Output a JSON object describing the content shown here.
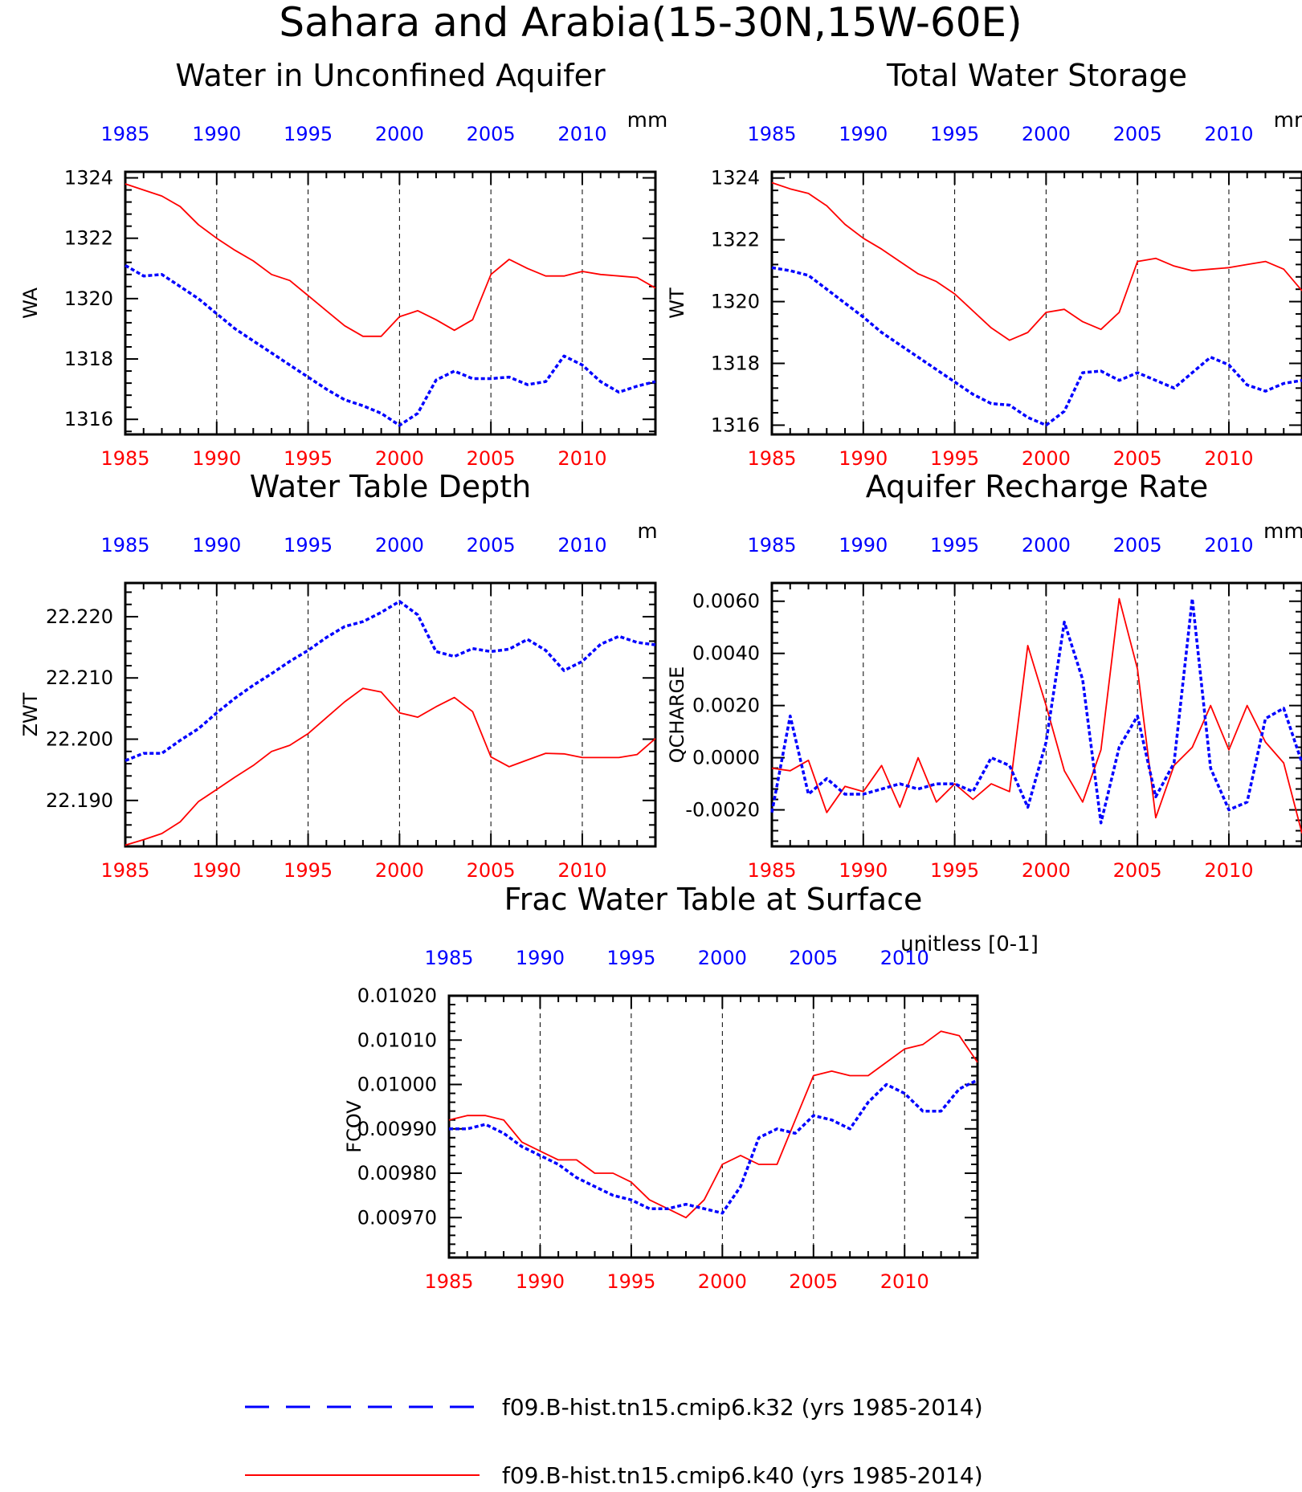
{
  "title": "Sahara and Arabia(15-30N,15W-60E)",
  "colors": {
    "k32": "#0000ff",
    "k40": "#ff0000",
    "axis": "#000000"
  },
  "legend": {
    "items": [
      {
        "label": "f09.B-hist.tn15.cmip6.k32 (yrs 1985-2014)",
        "color": "#0000ff",
        "style": "dashed"
      },
      {
        "label": "f09.B-hist.tn15.cmip6.k40 (yrs 1985-2014)",
        "color": "#ff0000",
        "style": "solid"
      }
    ]
  },
  "chart_data": [
    {
      "type": "line",
      "title": "Water in Unconfined Aquifer",
      "ylabel": "WA",
      "units": "mm",
      "xlim": [
        1985,
        2014
      ],
      "ylim": [
        1315.5,
        1324.2
      ],
      "yticks": [
        "1316",
        "1318",
        "1320",
        "1322",
        "1324"
      ],
      "ytick_values": [
        1316,
        1318,
        1320,
        1322,
        1324
      ],
      "xticks": [
        1985,
        1990,
        1995,
        2000,
        2005,
        2010
      ],
      "x": [
        1985,
        1986,
        1987,
        1988,
        1989,
        1990,
        1991,
        1992,
        1993,
        1994,
        1995,
        1996,
        1997,
        1998,
        1999,
        2000,
        2001,
        2002,
        2003,
        2004,
        2005,
        2006,
        2007,
        2008,
        2009,
        2010,
        2011,
        2012,
        2013,
        2014
      ],
      "series": [
        {
          "name": "f09.B-hist.tn15.cmip6.k32",
          "values": [
            1321.1,
            1320.75,
            1320.8,
            1320.4,
            1320.0,
            1319.5,
            1319.0,
            1318.6,
            1318.2,
            1317.8,
            1317.4,
            1317.0,
            1316.65,
            1316.45,
            1316.2,
            1315.8,
            1316.2,
            1317.3,
            1317.6,
            1317.35,
            1317.35,
            1317.4,
            1317.15,
            1317.25,
            1318.1,
            1317.8,
            1317.25,
            1316.9,
            1317.1,
            1317.25
          ]
        },
        {
          "name": "f09.B-hist.tn15.cmip6.k40",
          "values": [
            1323.8,
            1323.6,
            1323.4,
            1323.05,
            1322.45,
            1322.0,
            1321.6,
            1321.25,
            1320.8,
            1320.6,
            1320.1,
            1319.6,
            1319.1,
            1318.75,
            1318.75,
            1319.4,
            1319.6,
            1319.3,
            1318.95,
            1319.3,
            1320.8,
            1321.3,
            1321.0,
            1320.75,
            1320.75,
            1320.9,
            1320.8,
            1320.75,
            1320.7,
            1320.35
          ]
        }
      ]
    },
    {
      "type": "line",
      "title": "Total Water Storage",
      "ylabel": "WT",
      "units": "mm",
      "xlim": [
        1985,
        2014
      ],
      "ylim": [
        1315.7,
        1324.2
      ],
      "yticks": [
        "1316",
        "1318",
        "1320",
        "1322",
        "1324"
      ],
      "ytick_values": [
        1316,
        1318,
        1320,
        1322,
        1324
      ],
      "xticks": [
        1985,
        1990,
        1995,
        2000,
        2005,
        2010
      ],
      "x": [
        1985,
        1986,
        1987,
        1988,
        1989,
        1990,
        1991,
        1992,
        1993,
        1994,
        1995,
        1996,
        1997,
        1998,
        1999,
        2000,
        2001,
        2002,
        2003,
        2004,
        2005,
        2006,
        2007,
        2008,
        2009,
        2010,
        2011,
        2012,
        2013,
        2014
      ],
      "series": [
        {
          "name": "f09.B-hist.tn15.cmip6.k32",
          "values": [
            1321.1,
            1321.0,
            1320.85,
            1320.4,
            1319.95,
            1319.5,
            1319.0,
            1318.6,
            1318.2,
            1317.8,
            1317.4,
            1317.0,
            1316.7,
            1316.65,
            1316.25,
            1316.0,
            1316.45,
            1317.7,
            1317.75,
            1317.45,
            1317.7,
            1317.45,
            1317.2,
            1317.7,
            1318.2,
            1317.95,
            1317.3,
            1317.1,
            1317.35,
            1317.45
          ]
        },
        {
          "name": "f09.B-hist.tn15.cmip6.k40",
          "values": [
            1323.85,
            1323.65,
            1323.5,
            1323.1,
            1322.5,
            1322.05,
            1321.7,
            1321.3,
            1320.9,
            1320.65,
            1320.25,
            1319.7,
            1319.15,
            1318.75,
            1319.0,
            1319.65,
            1319.75,
            1319.35,
            1319.1,
            1319.65,
            1321.3,
            1321.4,
            1321.15,
            1321.0,
            1321.05,
            1321.1,
            1321.2,
            1321.3,
            1321.05,
            1320.35
          ]
        }
      ]
    },
    {
      "type": "line",
      "title": "Water Table Depth",
      "ylabel": "ZWT",
      "units": "m",
      "xlim": [
        1985,
        2014
      ],
      "ylim": [
        22.1825,
        22.2255
      ],
      "yticks": [
        "22.190",
        "22.200",
        "22.210",
        "22.220"
      ],
      "ytick_values": [
        22.19,
        22.2,
        22.21,
        22.22
      ],
      "xticks": [
        1985,
        1990,
        1995,
        2000,
        2005,
        2010
      ],
      "x": [
        1985,
        1986,
        1987,
        1988,
        1989,
        1990,
        1991,
        1992,
        1993,
        1994,
        1995,
        1996,
        1997,
        1998,
        1999,
        2000,
        2001,
        2002,
        2003,
        2004,
        2005,
        2006,
        2007,
        2008,
        2009,
        2010,
        2011,
        2012,
        2013,
        2014
      ],
      "series": [
        {
          "name": "f09.B-hist.tn15.cmip6.k32",
          "values": [
            22.1965,
            22.1977,
            22.1977,
            22.1998,
            22.2017,
            22.2043,
            22.2067,
            22.2088,
            22.2107,
            22.2127,
            22.2145,
            22.2166,
            22.2184,
            22.2192,
            22.2207,
            22.2225,
            22.2203,
            22.2143,
            22.2135,
            22.2148,
            22.2143,
            22.2147,
            22.2163,
            22.2145,
            22.2112,
            22.2127,
            22.2155,
            22.2168,
            22.2158,
            22.2154
          ]
        },
        {
          "name": "f09.B-hist.tn15.cmip6.k40",
          "values": [
            22.1827,
            22.1836,
            22.1846,
            22.1865,
            22.1898,
            22.1918,
            22.1938,
            22.1957,
            22.198,
            22.199,
            22.2009,
            22.2035,
            22.2061,
            22.2083,
            22.2077,
            22.2043,
            22.2036,
            22.2053,
            22.2068,
            22.2045,
            22.1971,
            22.1955,
            22.1966,
            22.1977,
            22.1976,
            22.197,
            22.197,
            22.197,
            22.1975,
            22.2001
          ]
        }
      ]
    },
    {
      "type": "line",
      "title": "Aquifer Recharge Rate",
      "ylabel": "QCHARGE",
      "units": "mm/d",
      "xlim": [
        1985,
        2014
      ],
      "ylim": [
        -0.0034,
        0.0067
      ],
      "yticks": [
        "-0.0020",
        "0.0000",
        "0.0020",
        "0.0040",
        "0.0060"
      ],
      "ytick_values": [
        -0.002,
        0.0,
        0.002,
        0.004,
        0.006
      ],
      "xticks": [
        1985,
        1990,
        1995,
        2000,
        2005,
        2010
      ],
      "x": [
        1985,
        1986,
        1987,
        1988,
        1989,
        1990,
        1991,
        1992,
        1993,
        1994,
        1995,
        1996,
        1997,
        1998,
        1999,
        2000,
        2001,
        2002,
        2003,
        2004,
        2005,
        2006,
        2007,
        2008,
        2009,
        2010,
        2011,
        2012,
        2013,
        2014
      ],
      "series": [
        {
          "name": "f09.B-hist.tn15.cmip6.k32",
          "values": [
            -0.0021,
            0.0016,
            -0.0014,
            -0.0008,
            -0.0014,
            -0.0014,
            -0.0012,
            -0.001,
            -0.0012,
            -0.001,
            -0.001,
            -0.0013,
            0.0,
            -0.0003,
            -0.0019,
            0.0006,
            0.0052,
            0.003,
            -0.0025,
            0.0004,
            0.0016,
            -0.0015,
            -0.0002,
            0.0061,
            -0.0004,
            -0.002,
            -0.0017,
            0.0015,
            0.0019,
            -0.0002
          ]
        },
        {
          "name": "f09.B-hist.tn15.cmip6.k40",
          "values": [
            -0.0004,
            -0.0005,
            -0.0001,
            -0.0021,
            -0.0011,
            -0.0013,
            -0.0003,
            -0.0019,
            0.0,
            -0.0017,
            -0.001,
            -0.0016,
            -0.001,
            -0.0013,
            0.0043,
            0.002,
            -0.0005,
            -0.0017,
            0.0003,
            0.0061,
            0.0034,
            -0.0023,
            -0.0003,
            0.0004,
            0.002,
            0.0003,
            0.002,
            0.0006,
            -0.0002,
            -0.0029
          ]
        }
      ]
    },
    {
      "type": "line",
      "title": "Frac Water Table at Surface",
      "ylabel": "FCOV",
      "units": "unitless [0-1]",
      "xlim": [
        1985,
        2014
      ],
      "ylim": [
        0.00961,
        0.0102
      ],
      "yticks": [
        "0.00970",
        "0.00980",
        "0.00990",
        "0.01000",
        "0.01010",
        "0.01020"
      ],
      "ytick_values": [
        0.0097,
        0.0098,
        0.0099,
        0.01,
        0.0101,
        0.0102
      ],
      "xticks": [
        1985,
        1990,
        1995,
        2000,
        2005,
        2010
      ],
      "x": [
        1985,
        1986,
        1987,
        1988,
        1989,
        1990,
        1991,
        1992,
        1993,
        1994,
        1995,
        1996,
        1997,
        1998,
        1999,
        2000,
        2001,
        2002,
        2003,
        2004,
        2005,
        2006,
        2007,
        2008,
        2009,
        2010,
        2011,
        2012,
        2013,
        2014
      ],
      "series": [
        {
          "name": "f09.B-hist.tn15.cmip6.k32",
          "values": [
            0.0099,
            0.0099,
            0.00991,
            0.00989,
            0.00986,
            0.00984,
            0.00982,
            0.00979,
            0.00977,
            0.00975,
            0.00974,
            0.00972,
            0.00972,
            0.00973,
            0.00972,
            0.00971,
            0.00977,
            0.00988,
            0.0099,
            0.00989,
            0.00993,
            0.00992,
            0.0099,
            0.00996,
            0.01,
            0.00998,
            0.00994,
            0.00994,
            0.00999,
            0.01001
          ]
        },
        {
          "name": "f09.B-hist.tn15.cmip6.k40",
          "values": [
            0.00992,
            0.00993,
            0.00993,
            0.00992,
            0.00987,
            0.00985,
            0.00983,
            0.00983,
            0.0098,
            0.0098,
            0.00978,
            0.00974,
            0.00972,
            0.0097,
            0.00974,
            0.00982,
            0.00984,
            0.00982,
            0.00982,
            0.00992,
            0.01002,
            0.01003,
            0.01002,
            0.01002,
            0.01005,
            0.01008,
            0.01009,
            0.01012,
            0.01011,
            0.01005
          ]
        }
      ]
    }
  ]
}
